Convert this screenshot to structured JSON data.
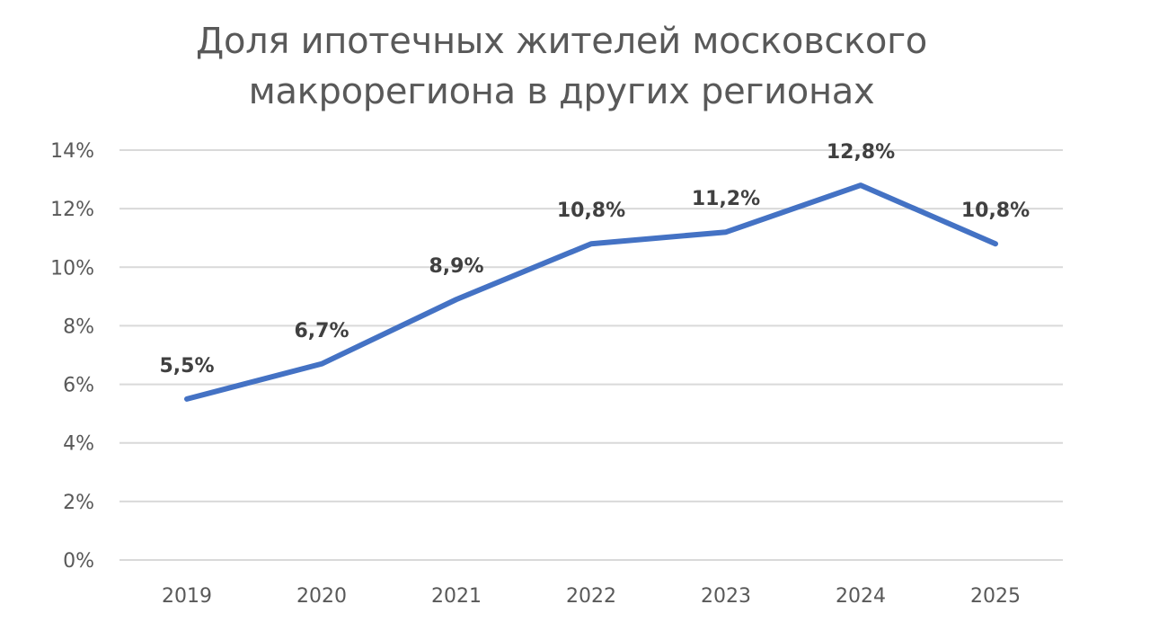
{
  "chart_data": {
    "type": "line",
    "title_lines": [
      "Доля ипотечных жителей московского",
      "макрорегиона в других регионах"
    ],
    "categories": [
      "2019",
      "2020",
      "2021",
      "2022",
      "2023",
      "2024",
      "2025"
    ],
    "series": [
      {
        "values": [
          5.5,
          6.7,
          8.9,
          10.8,
          11.2,
          12.8,
          10.8
        ],
        "data_labels": [
          "5,5%",
          "6,7%",
          "8,9%",
          "10,8%",
          "11,2%",
          "12,8%",
          "10,8%"
        ],
        "color": "#4472C4"
      }
    ],
    "ylim": [
      0,
      14
    ],
    "yticks": [
      0,
      2,
      4,
      6,
      8,
      10,
      12,
      14
    ],
    "ytick_labels": [
      "0%",
      "2%",
      "4%",
      "6%",
      "8%",
      "10%",
      "12%",
      "14%"
    ],
    "grid": true,
    "legend": "none",
    "gridline_color": "#D9D9D9"
  }
}
